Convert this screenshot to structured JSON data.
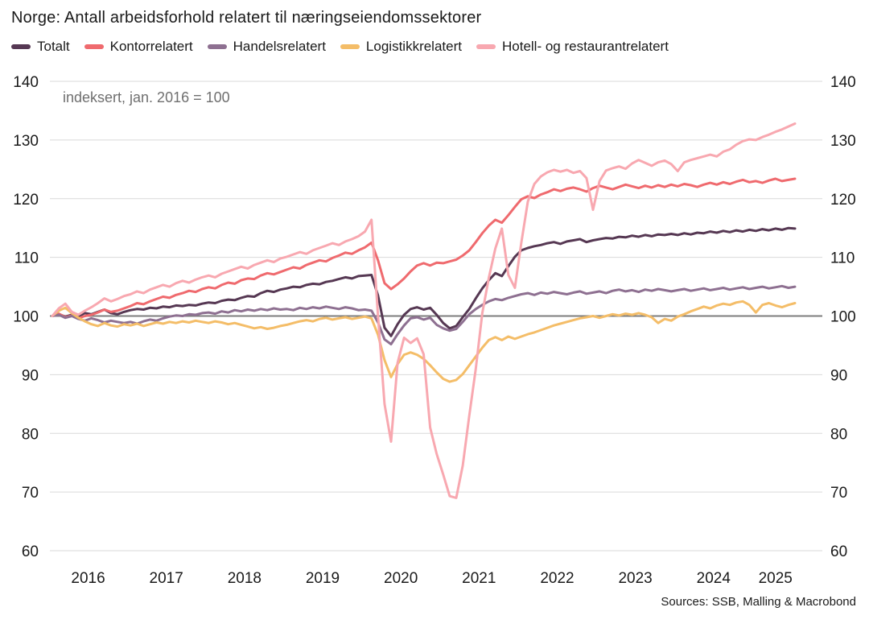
{
  "header": {
    "title": "Norge: Antall arbeidsforhold relatert til næringseiendomssektorer",
    "subtitle": "indeksert, jan. 2016 = 100",
    "source": "Sources: SSB, Malling & Macrobond"
  },
  "colors": {
    "grid": "#d9d9d9",
    "baseline": "#7d7d7d",
    "text": "#1a1a1a",
    "subtitle_text": "#6f6f6f",
    "background": "#ffffff"
  },
  "chart_data": {
    "type": "line",
    "title": "Norge: Antall arbeidsforhold relatert til næringseiendomssektorer",
    "subtitle": "indeksert, jan. 2016 = 100",
    "source": "Sources: SSB, Malling & Macrobond",
    "x_start": "2016-01",
    "x_end": "2025-07",
    "points_per_year": 12,
    "x_labels": [
      "2016",
      "2017",
      "2018",
      "2019",
      "2020",
      "2021",
      "2022",
      "2023",
      "2024",
      "2025"
    ],
    "yticks": [
      60,
      70,
      80,
      90,
      100,
      110,
      120,
      130,
      140
    ],
    "ylim": [
      60,
      140
    ],
    "baseline_value": 100,
    "grid": "horizontal",
    "legend_position": "top",
    "series": [
      {
        "name": "Totalt",
        "color": "#563853",
        "values": [
          100,
          100.3,
          99.9,
          100.2,
          100,
          100.5,
          100.3,
          100.7,
          101.1,
          100.5,
          100.3,
          100.7,
          101,
          101.2,
          101.1,
          101.4,
          101.3,
          101.6,
          101.5,
          101.8,
          101.7,
          101.9,
          101.8,
          102.1,
          102.3,
          102.2,
          102.6,
          102.8,
          102.7,
          103.1,
          103.4,
          103.3,
          103.9,
          104.3,
          104.1,
          104.5,
          104.7,
          105,
          104.9,
          105.3,
          105.5,
          105.4,
          105.8,
          106,
          106.3,
          106.6,
          106.4,
          106.8,
          106.9,
          107,
          103.5,
          98,
          96.6,
          98.6,
          100.2,
          101.2,
          101.5,
          101.1,
          101.4,
          100.2,
          98.8,
          97.9,
          98.3,
          99.8,
          101.2,
          103,
          104.7,
          106.1,
          107.3,
          106.8,
          108.5,
          110.1,
          111.2,
          111.6,
          111.9,
          112.1,
          112.4,
          112.6,
          112.3,
          112.7,
          112.9,
          113.1,
          112.6,
          112.9,
          113.1,
          113.3,
          113.2,
          113.5,
          113.4,
          113.7,
          113.5,
          113.8,
          113.6,
          113.9,
          113.8,
          114,
          113.8,
          114.1,
          113.9,
          114.2,
          114.1,
          114.4,
          114.2,
          114.5,
          114.3,
          114.6,
          114.4,
          114.7,
          114.5,
          114.8,
          114.6,
          114.9,
          114.7,
          115,
          114.9
        ]
      },
      {
        "name": "Kontorrelatert",
        "color": "#ef6a6e",
        "values": [
          100,
          100.4,
          99.8,
          100.1,
          99.6,
          100,
          100.2,
          100.6,
          101.1,
          100.7,
          100.9,
          101.3,
          101.7,
          102.2,
          102,
          102.5,
          102.9,
          103.3,
          103.1,
          103.6,
          103.9,
          104.3,
          104.1,
          104.6,
          104.9,
          104.7,
          105.3,
          105.7,
          105.5,
          106.1,
          106.4,
          106.3,
          106.9,
          107.3,
          107.1,
          107.5,
          107.9,
          108.3,
          108.1,
          108.7,
          109.1,
          109.5,
          109.3,
          109.9,
          110.3,
          110.8,
          110.6,
          111.2,
          111.7,
          112.5,
          109.5,
          105.6,
          104.6,
          105.4,
          106.4,
          107.6,
          108.6,
          109,
          108.6,
          109.1,
          109,
          109.3,
          109.6,
          110.3,
          111.2,
          112.6,
          114.1,
          115.4,
          116.4,
          115.9,
          117.2,
          118.6,
          119.9,
          120.4,
          120.1,
          120.7,
          121.1,
          121.6,
          121.3,
          121.7,
          121.9,
          121.6,
          121.2,
          121.8,
          122.2,
          121.9,
          121.6,
          122,
          122.4,
          122.1,
          121.8,
          122.2,
          121.9,
          122.3,
          122,
          122.4,
          122.1,
          122.5,
          122.3,
          122,
          122.4,
          122.7,
          122.4,
          122.8,
          122.5,
          122.9,
          123.2,
          122.8,
          123,
          122.7,
          123.1,
          123.4,
          123,
          123.2,
          123.4
        ]
      },
      {
        "name": "Handelsrelatert",
        "color": "#8e7091",
        "values": [
          100,
          100.2,
          99.7,
          100,
          99.5,
          99.2,
          99.6,
          99.3,
          98.9,
          99.2,
          99,
          98.8,
          99,
          98.7,
          99.1,
          99.4,
          99.2,
          99.6,
          99.9,
          100.1,
          100,
          100.3,
          100.2,
          100.5,
          100.6,
          100.4,
          100.8,
          100.6,
          101,
          100.8,
          101.1,
          100.9,
          101.2,
          101,
          101.3,
          101.1,
          101.2,
          101,
          101.4,
          101.2,
          101.5,
          101.3,
          101.6,
          101.4,
          101.2,
          101.5,
          101.3,
          101,
          101.1,
          100.9,
          98.9,
          96,
          95.2,
          96.9,
          98.4,
          99.6,
          99.8,
          99.4,
          99.7,
          98.5,
          97.9,
          97.5,
          97.8,
          99,
          100.3,
          101.2,
          101.9,
          102.5,
          102.9,
          102.7,
          103.1,
          103.4,
          103.7,
          103.9,
          103.6,
          104,
          103.8,
          104.1,
          103.9,
          103.7,
          104,
          104.2,
          103.8,
          104,
          104.2,
          103.9,
          104.3,
          104.5,
          104.2,
          104.4,
          104.1,
          104.5,
          104.3,
          104.6,
          104.4,
          104.2,
          104.4,
          104.6,
          104.3,
          104.5,
          104.7,
          104.4,
          104.6,
          104.8,
          104.5,
          104.7,
          104.9,
          104.6,
          104.8,
          105,
          104.7,
          104.9,
          105.1,
          104.8,
          105
        ]
      },
      {
        "name": "Logistikkrelatert",
        "color": "#f4bd68",
        "values": [
          100,
          100.9,
          101.4,
          100.5,
          99.7,
          99.1,
          98.6,
          98.3,
          98.8,
          98.4,
          98.2,
          98.6,
          98.4,
          98.7,
          98.3,
          98.6,
          98.9,
          98.7,
          99,
          98.8,
          99.1,
          98.9,
          99.2,
          99,
          98.8,
          99.1,
          98.9,
          98.6,
          98.8,
          98.5,
          98.2,
          97.9,
          98.1,
          97.8,
          98,
          98.3,
          98.5,
          98.8,
          99.1,
          99.3,
          99.1,
          99.5,
          99.7,
          99.4,
          99.6,
          99.8,
          99.5,
          99.7,
          99.9,
          99.6,
          96.8,
          92.5,
          89.6,
          91.8,
          93.4,
          93.8,
          93.4,
          92.7,
          91.6,
          90.4,
          89.3,
          88.8,
          89.1,
          90.1,
          91.6,
          93.1,
          94.6,
          95.9,
          96.4,
          95.9,
          96.5,
          96.1,
          96.5,
          96.9,
          97.2,
          97.6,
          98,
          98.4,
          98.7,
          99,
          99.3,
          99.6,
          99.8,
          100,
          99.7,
          100,
          100.3,
          100.1,
          100.4,
          100.2,
          100.5,
          100.2,
          99.8,
          98.8,
          99.5,
          99.2,
          99.9,
          100.3,
          100.8,
          101.2,
          101.6,
          101.3,
          101.8,
          102.1,
          101.9,
          102.3,
          102.5,
          101.9,
          100.6,
          101.9,
          102.2,
          101.8,
          101.5,
          101.9,
          102.2
        ]
      },
      {
        "name": "Hotell- og restaurantrelatert",
        "color": "#f8a8b0",
        "values": [
          100,
          101.3,
          102.1,
          100.7,
          100.2,
          100.9,
          101.5,
          102.2,
          103,
          102.5,
          102.9,
          103.4,
          103.7,
          104.2,
          103.9,
          104.5,
          104.9,
          105.3,
          105,
          105.6,
          106,
          105.7,
          106.2,
          106.6,
          106.9,
          106.6,
          107.2,
          107.6,
          108,
          108.4,
          108.1,
          108.7,
          109.1,
          109.5,
          109.2,
          109.8,
          110.1,
          110.5,
          110.9,
          110.6,
          111.2,
          111.6,
          112,
          112.4,
          112.1,
          112.7,
          113.1,
          113.6,
          114.4,
          116.4,
          100,
          85,
          78.6,
          92,
          96.3,
          95.4,
          96.2,
          93.5,
          81,
          76.5,
          73,
          69.3,
          69,
          74.5,
          83,
          91,
          100.5,
          106.5,
          111.5,
          114.9,
          107,
          104.8,
          112.5,
          119.5,
          122.5,
          123.8,
          124.5,
          124.9,
          124.6,
          124.9,
          124.4,
          124.7,
          123.5,
          118.1,
          123,
          124.8,
          125.2,
          125.5,
          125.1,
          126,
          126.6,
          126.1,
          125.6,
          126.2,
          126.5,
          125.9,
          124.7,
          126.2,
          126.6,
          126.9,
          127.2,
          127.5,
          127.2,
          128,
          128.4,
          129.2,
          129.8,
          130.1,
          130,
          130.5,
          130.9,
          131.4,
          131.8,
          132.3,
          132.8
        ]
      }
    ]
  }
}
